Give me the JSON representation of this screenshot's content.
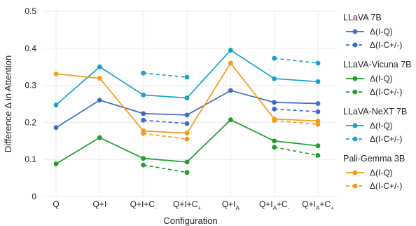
{
  "chart_data": {
    "type": "line",
    "xlabel": "Configuration",
    "ylabel": "Difference Δ in Attention",
    "ylim": [
      0,
      0.5
    ],
    "y_ticks": [
      "0",
      "0.1",
      "0.2",
      "0.3",
      "0.4",
      "0.5"
    ],
    "grid": true,
    "legend_position": "right",
    "categories": [
      {
        "base": "Q",
        "sub": "",
        "suffix": ""
      },
      {
        "base": "Q+I",
        "sub": "",
        "suffix": ""
      },
      {
        "base": "Q+I+C",
        "sub": "-",
        "suffix": ""
      },
      {
        "base": "Q+I+C",
        "sub": "+",
        "suffix": ""
      },
      {
        "base": "Q+I",
        "sub": "A",
        "suffix": ""
      },
      {
        "base": "Q+I",
        "sub": "A",
        "suffix": "+C",
        "sub2": "-"
      },
      {
        "base": "Q+I",
        "sub": "A",
        "suffix": "+C",
        "sub2": "+"
      }
    ],
    "series_labels": {
      "iq": "Δ(I-Q)",
      "icpm": "Δ(I-C+/-)"
    },
    "models": [
      {
        "name": "LLaVA 7B",
        "color": "#3a6cc9",
        "iq": [
          0.186,
          0.26,
          0.224,
          0.22,
          0.286,
          0.254,
          0.251
        ],
        "icpm": [
          null,
          null,
          0.206,
          0.197,
          null,
          0.236,
          0.229
        ]
      },
      {
        "name": "LLaVA-Vicuna 7B",
        "color": "#1f9e2c",
        "iq": [
          0.088,
          0.159,
          0.103,
          0.093,
          0.207,
          0.15,
          0.137
        ],
        "icpm": [
          null,
          null,
          0.085,
          0.065,
          null,
          0.133,
          0.111
        ]
      },
      {
        "name": "LLaVA-NeXT 7B",
        "color": "#17a2c3",
        "iq": [
          0.247,
          0.35,
          0.274,
          0.266,
          0.395,
          0.318,
          0.31
        ],
        "icpm": [
          null,
          null,
          0.333,
          0.322,
          null,
          0.373,
          0.36
        ]
      },
      {
        "name": "Pali-Gemma 3B",
        "color": "#f59a12",
        "iq": [
          0.331,
          0.319,
          0.177,
          0.171,
          0.36,
          0.209,
          0.204
        ],
        "icpm": [
          null,
          null,
          0.17,
          0.155,
          null,
          0.205,
          0.195
        ]
      }
    ]
  }
}
